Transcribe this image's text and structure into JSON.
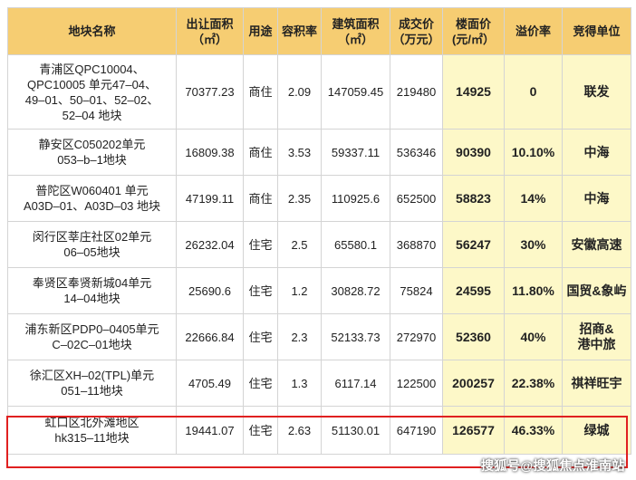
{
  "table": {
    "headers": [
      "地块名称",
      "出让面积\n（㎡）",
      "用途",
      "容积率",
      "建筑面积\n（㎡）",
      "成交价\n（万元）",
      "楼面价\n(元/㎡）",
      "溢价率",
      "竞得单位"
    ],
    "rows": [
      [
        "青浦区QPC10004、\nQPC10005 单元47–04、\n49–01、50–01、52–02、\n52–04 地块",
        "70377.23",
        "商住",
        "2.09",
        "147059.45",
        "219480",
        "14925",
        "0",
        "联发"
      ],
      [
        "静安区C050202单元\n053–b–1地块",
        "16809.38",
        "商住",
        "3.53",
        "59337.11",
        "536346",
        "90390",
        "10.10%",
        "中海"
      ],
      [
        "普陀区W060401 单元\nA03D–01、A03D–03 地块",
        "47199.11",
        "商住",
        "2.35",
        "110925.6",
        "652500",
        "58823",
        "14%",
        "中海"
      ],
      [
        "闵行区莘庄社区02单元\n06–05地块",
        "26232.04",
        "住宅",
        "2.5",
        "65580.1",
        "368870",
        "56247",
        "30%",
        "安徽高速"
      ],
      [
        "奉贤区奉贤新城04单元\n14–04地块",
        "25690.6",
        "住宅",
        "1.2",
        "30828.72",
        "75824",
        "24595",
        "11.80%",
        "国贸&象屿"
      ],
      [
        "浦东新区PDP0–0405单元\nC–02C–01地块",
        "22666.84",
        "住宅",
        "2.3",
        "52133.73",
        "272970",
        "52360",
        "40%",
        "招商&\n港中旅"
      ],
      [
        "徐汇区XH–02(TPL)单元\n051–11地块",
        "4705.49",
        "住宅",
        "1.3",
        "6117.14",
        "122500",
        "200257",
        "22.38%",
        "祺祥旺宇"
      ],
      [
        "虹口区北外滩地区\nhk315–11地块",
        "19441.07",
        "住宅",
        "2.63",
        "51130.01",
        "647190",
        "126577",
        "46.33%",
        "绿城"
      ]
    ]
  },
  "watermark": "搜狐号@搜狐焦点淮南站",
  "colors": {
    "header_bg": "#f6cd72",
    "highlight_cell_bg": "#fdf8c8",
    "highlight_border": "#e02020"
  }
}
